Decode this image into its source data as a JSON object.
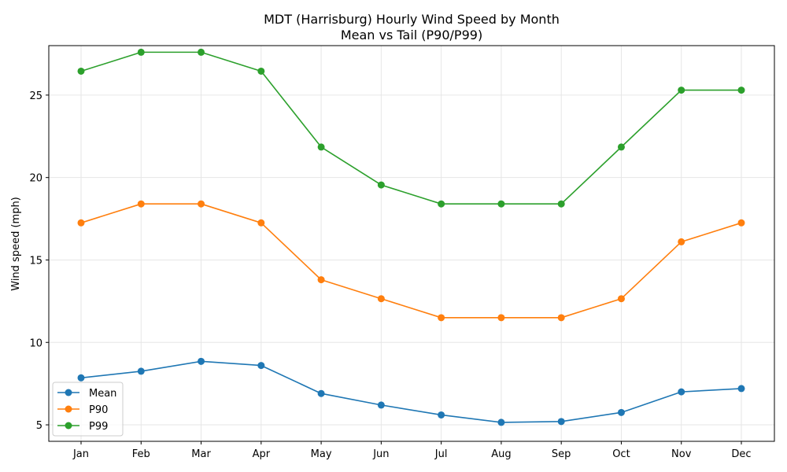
{
  "chart_data": {
    "type": "line",
    "title": "MDT (Harrisburg) Hourly Wind Speed by Month",
    "subtitle": "Mean vs Tail (P90/P99)",
    "xlabel": "",
    "ylabel": "Wind speed (mph)",
    "categories": [
      "Jan",
      "Feb",
      "Mar",
      "Apr",
      "May",
      "Jun",
      "Jul",
      "Aug",
      "Sep",
      "Oct",
      "Nov",
      "Dec"
    ],
    "ylim": [
      4.0,
      28.0
    ],
    "yticks": [
      5,
      10,
      15,
      20,
      25
    ],
    "grid": true,
    "legend_position": "lower-left",
    "series": [
      {
        "name": "Mean",
        "color": "#1f77b4",
        "values": [
          7.85,
          8.25,
          8.85,
          8.6,
          6.9,
          6.2,
          5.6,
          5.15,
          5.2,
          5.75,
          7.0,
          7.2
        ]
      },
      {
        "name": "P90",
        "color": "#ff7f0e",
        "values": [
          17.25,
          18.4,
          18.4,
          17.25,
          13.8,
          12.65,
          11.5,
          11.5,
          11.5,
          12.65,
          16.1,
          17.25
        ]
      },
      {
        "name": "P99",
        "color": "#2ca02c",
        "values": [
          26.45,
          27.6,
          27.6,
          26.45,
          21.85,
          19.55,
          18.4,
          18.4,
          18.4,
          21.85,
          25.3,
          25.3
        ]
      }
    ]
  }
}
